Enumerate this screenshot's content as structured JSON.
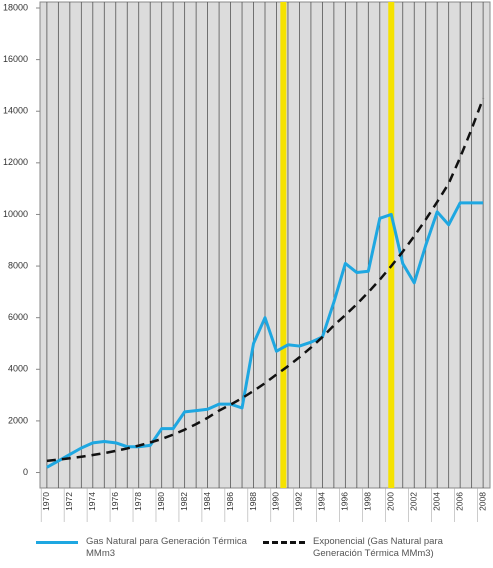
{
  "chart_data": {
    "type": "line",
    "x": [
      1970,
      1971,
      1972,
      1973,
      1974,
      1975,
      1976,
      1977,
      1978,
      1979,
      1980,
      1981,
      1982,
      1983,
      1984,
      1985,
      1986,
      1987,
      1988,
      1989,
      1990,
      1991,
      1992,
      1993,
      1994,
      1995,
      1996,
      1997,
      1998,
      1999,
      2000,
      2001,
      2002,
      2003,
      2004,
      2005,
      2006,
      2007,
      2008
    ],
    "series": [
      {
        "name": "Gas Natural para Generación Térmica MMm3",
        "color": "#1ea7e1",
        "dash": false,
        "values": [
          200,
          450,
          700,
          950,
          1150,
          1200,
          1150,
          1000,
          1000,
          1050,
          1700,
          1700,
          2350,
          2400,
          2450,
          2650,
          2650,
          2500,
          5000,
          6000,
          4700,
          4950,
          4900,
          5050,
          5250,
          6600,
          8100,
          7750,
          7800,
          9850,
          10000,
          8100,
          7350,
          8800,
          10100,
          9600,
          10450,
          10450,
          10450
        ]
      },
      {
        "name": "Exponencial (Gas Natural para Generación Térmica MMm3)",
        "color": "#111111",
        "dash": true,
        "values": [
          450,
          499,
          552,
          612,
          678,
          750,
          837,
          934,
          1042,
          1163,
          1300,
          1469,
          1660,
          1876,
          2120,
          2400,
          2630,
          2883,
          3160,
          3464,
          3800,
          4120,
          4466,
          4841,
          5248,
          5700,
          6100,
          6527,
          6984,
          7473,
          8000,
          8560,
          9159,
          9800,
          10486,
          11200,
          12208,
          13307,
          14500
        ]
      }
    ],
    "highlight_x": [
      1990.6,
      2000
    ],
    "highlight_color": "#f5e200",
    "xlim": [
      1969.4,
      2008.6
    ],
    "xticks": [
      1970,
      1972,
      1974,
      1976,
      1978,
      1980,
      1982,
      1984,
      1986,
      1988,
      1990,
      1992,
      1994,
      1996,
      1998,
      2000,
      2002,
      2004,
      2006,
      2008
    ],
    "xminorticks": [
      1971,
      1973,
      1975,
      1977,
      1979,
      1981,
      1983,
      1985,
      1987,
      1989,
      1991,
      1993,
      1995,
      1997,
      1999,
      2001,
      2003,
      2005,
      2007
    ],
    "ylim": [
      -600,
      18000
    ],
    "yticks": [
      0,
      2000,
      4000,
      6000,
      8000,
      10000,
      12000,
      14000,
      16000,
      18000
    ],
    "grid": true,
    "legend": "bottom"
  }
}
